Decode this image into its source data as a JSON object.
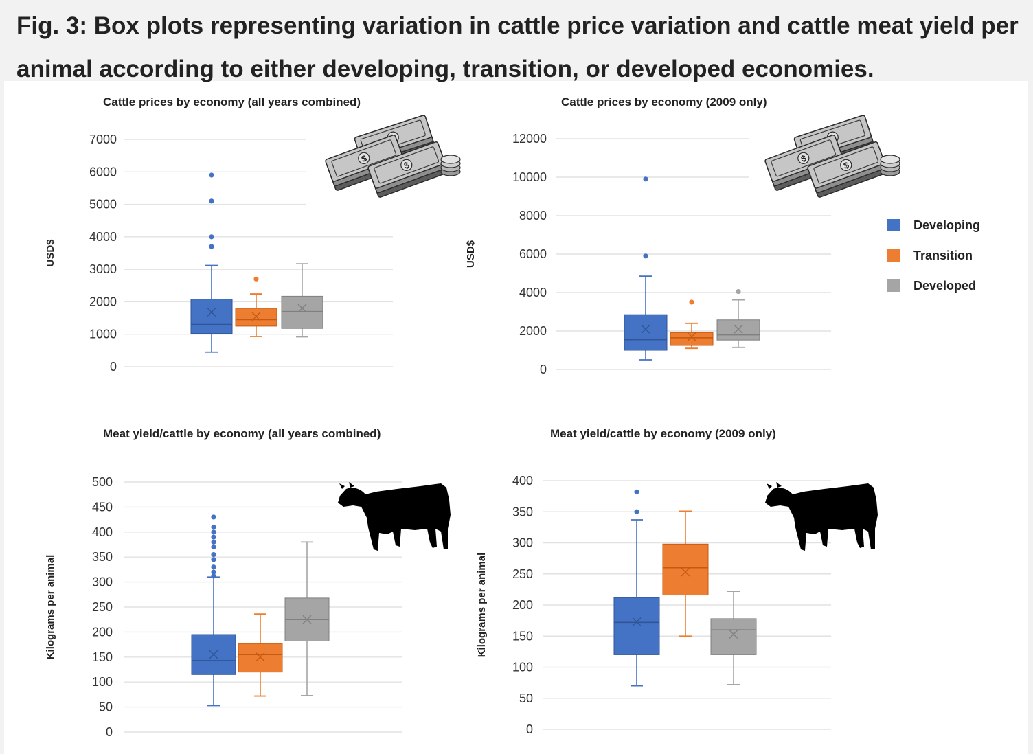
{
  "figure": {
    "title": "Fig. 3: Box plots representing variation in cattle price variation and cattle meat yield per animal according to either developing, transition, or developed economies."
  },
  "legend": [
    {
      "name": "Developing",
      "color": "#4472c4"
    },
    {
      "name": "Transition",
      "color": "#ed7d31"
    },
    {
      "name": "Developed",
      "color": "#a5a5a5"
    }
  ],
  "icons": {
    "price": "money-stack-icon",
    "yield": "cow-silhouette-icon"
  },
  "chart_data": [
    {
      "type": "box",
      "title": "Cattle prices by economy (all years combined)",
      "ylabel": "USD$",
      "yticks": [
        0,
        1000,
        2000,
        3000,
        4000,
        5000,
        6000,
        7000
      ],
      "ylim": [
        0,
        7000
      ],
      "grid": true,
      "series": [
        {
          "name": "Developing",
          "min": 450,
          "q1": 1020,
          "median": 1300,
          "q3": 2080,
          "max": 3120,
          "mean": 1680,
          "outliers": [
            3700,
            4000,
            5100,
            5900
          ]
        },
        {
          "name": "Transition",
          "min": 930,
          "q1": 1250,
          "median": 1450,
          "q3": 1800,
          "max": 2240,
          "mean": 1550,
          "outliers": [
            2700
          ]
        },
        {
          "name": "Developed",
          "min": 920,
          "q1": 1180,
          "median": 1700,
          "q3": 2170,
          "max": 3170,
          "mean": 1800,
          "outliers": []
        }
      ]
    },
    {
      "type": "box",
      "title": "Cattle prices by economy (2009 only)",
      "ylabel": "USD$",
      "yticks": [
        0,
        2000,
        4000,
        6000,
        8000,
        10000,
        12000
      ],
      "ylim": [
        0,
        12000
      ],
      "grid": true,
      "series": [
        {
          "name": "Developing",
          "min": 500,
          "q1": 1000,
          "median": 1550,
          "q3": 2850,
          "max": 4850,
          "mean": 2100,
          "outliers": [
            5900,
            9900
          ]
        },
        {
          "name": "Transition",
          "min": 1100,
          "q1": 1250,
          "median": 1650,
          "q3": 1920,
          "max": 2400,
          "mean": 1700,
          "outliers": [
            3500
          ]
        },
        {
          "name": "Developed",
          "min": 1150,
          "q1": 1530,
          "median": 1800,
          "q3": 2580,
          "max": 3620,
          "mean": 2100,
          "outliers": [
            4050
          ]
        }
      ]
    },
    {
      "type": "box",
      "title": "Meat yield/cattle by economy (all years combined)",
      "ylabel": "Kilograms per animal",
      "yticks": [
        0,
        50,
        100,
        150,
        200,
        250,
        300,
        350,
        400,
        450,
        500
      ],
      "ylim": [
        0,
        500
      ],
      "grid": true,
      "series": [
        {
          "name": "Developing",
          "min": 53,
          "q1": 115,
          "median": 143,
          "q3": 195,
          "max": 310,
          "mean": 155,
          "outliers": [
            312,
            320,
            330,
            345,
            355,
            370,
            380,
            390,
            400,
            410,
            430
          ]
        },
        {
          "name": "Transition",
          "min": 72,
          "q1": 120,
          "median": 155,
          "q3": 177,
          "max": 236,
          "mean": 150,
          "outliers": []
        },
        {
          "name": "Developed",
          "min": 73,
          "q1": 182,
          "median": 225,
          "q3": 268,
          "max": 380,
          "mean": 225,
          "outliers": []
        }
      ]
    },
    {
      "type": "box",
      "title": "Meat yield/cattle by economy (2009 only)",
      "ylabel": "Kilograms per animal",
      "yticks": [
        0,
        50,
        100,
        150,
        200,
        250,
        300,
        350,
        400
      ],
      "ylim": [
        0,
        400
      ],
      "grid": true,
      "series": [
        {
          "name": "Developing",
          "min": 70,
          "q1": 120,
          "median": 172,
          "q3": 212,
          "max": 337,
          "mean": 173,
          "outliers": [
            350,
            382
          ]
        },
        {
          "name": "Transition",
          "min": 150,
          "q1": 216,
          "median": 260,
          "q3": 298,
          "max": 351,
          "mean": 253,
          "outliers": []
        },
        {
          "name": "Developed",
          "min": 72,
          "q1": 120,
          "median": 160,
          "q3": 178,
          "max": 222,
          "mean": 153,
          "outliers": []
        }
      ]
    }
  ]
}
